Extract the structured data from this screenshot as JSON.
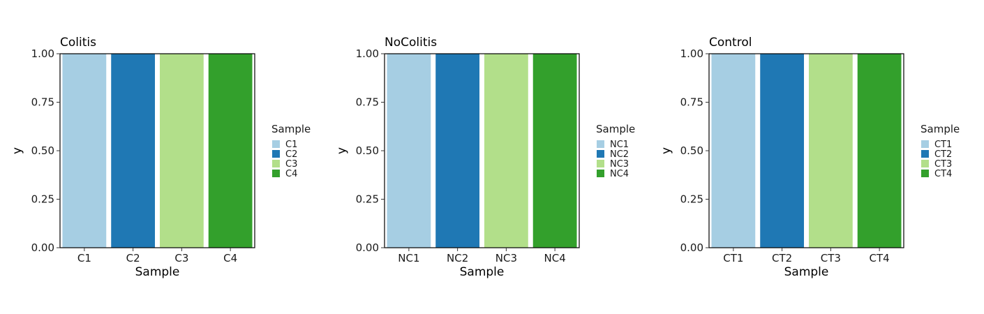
{
  "chart_data": [
    {
      "type": "bar",
      "title": "Colitis",
      "xlabel": "Sample",
      "ylabel": "y",
      "ylim": [
        0,
        1
      ],
      "yticks": [
        "0.00",
        "0.25",
        "0.50",
        "0.75",
        "1.00"
      ],
      "categories": [
        "C1",
        "C2",
        "C3",
        "C4"
      ],
      "values": [
        1,
        1,
        1,
        1
      ],
      "colors": [
        "#A6CEE3",
        "#1F78B4",
        "#B2DF8A",
        "#33A02C"
      ],
      "legend": {
        "title": "Sample",
        "position": "right",
        "entries": [
          "C1",
          "C2",
          "C3",
          "C4"
        ]
      }
    },
    {
      "type": "bar",
      "title": "NoColitis",
      "xlabel": "Sample",
      "ylabel": "y",
      "ylim": [
        0,
        1
      ],
      "yticks": [
        "0.00",
        "0.25",
        "0.50",
        "0.75",
        "1.00"
      ],
      "categories": [
        "NC1",
        "NC2",
        "NC3",
        "NC4"
      ],
      "values": [
        1,
        1,
        1,
        1
      ],
      "colors": [
        "#A6CEE3",
        "#1F78B4",
        "#B2DF8A",
        "#33A02C"
      ],
      "legend": {
        "title": "Sample",
        "position": "right",
        "entries": [
          "NC1",
          "NC2",
          "NC3",
          "NC4"
        ]
      }
    },
    {
      "type": "bar",
      "title": "Control",
      "xlabel": "Sample",
      "ylabel": "y",
      "ylim": [
        0,
        1
      ],
      "yticks": [
        "0.00",
        "0.25",
        "0.50",
        "0.75",
        "1.00"
      ],
      "categories": [
        "CT1",
        "CT2",
        "CT3",
        "CT4"
      ],
      "values": [
        1,
        1,
        1,
        1
      ],
      "colors": [
        "#A6CEE3",
        "#1F78B4",
        "#B2DF8A",
        "#33A02C"
      ],
      "legend": {
        "title": "Sample",
        "position": "right",
        "entries": [
          "CT1",
          "CT2",
          "CT3",
          "CT4"
        ]
      }
    }
  ]
}
